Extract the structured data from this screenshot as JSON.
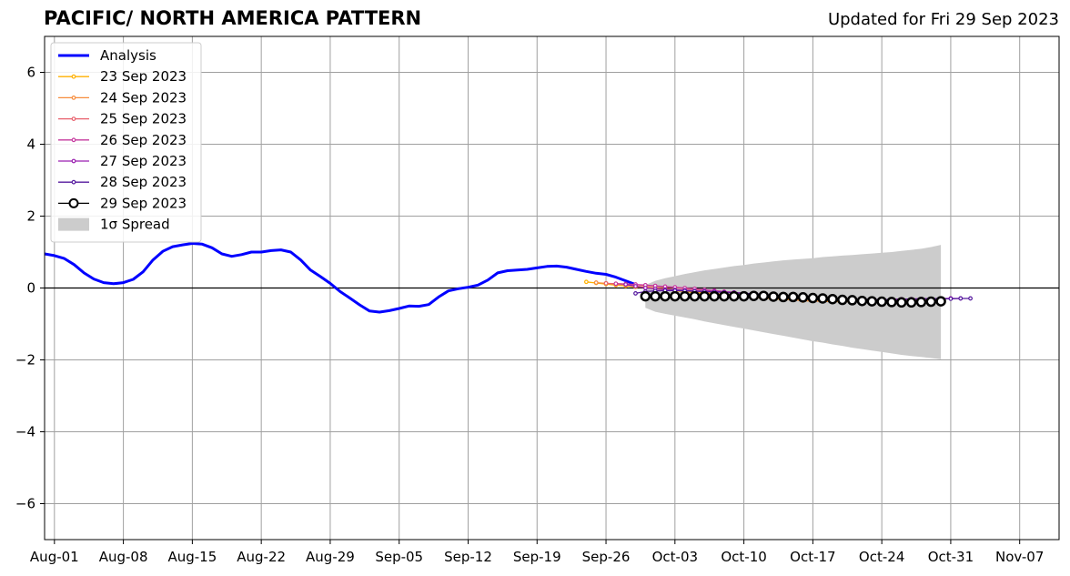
{
  "header": {
    "title": "PACIFIC/ NORTH AMERICA PATTERN",
    "updated": "Updated for Fri 29 Sep 2023"
  },
  "chart_data": {
    "type": "line",
    "title": "PACIFIC/ NORTH AMERICA PATTERN",
    "subtitle": "Updated for Fri 29 Sep 2023",
    "xlabel": "",
    "ylabel": "",
    "x_axis": {
      "unit": "date",
      "range": [
        "2023-07-31",
        "2023-11-11"
      ],
      "ticks": [
        "2023-08-01",
        "2023-08-08",
        "2023-08-15",
        "2023-08-22",
        "2023-08-29",
        "2023-09-05",
        "2023-09-12",
        "2023-09-19",
        "2023-09-26",
        "2023-10-03",
        "2023-10-10",
        "2023-10-17",
        "2023-10-24",
        "2023-10-31",
        "2023-11-07"
      ],
      "tick_labels": [
        "Aug-01",
        "Aug-08",
        "Aug-15",
        "Aug-22",
        "Aug-29",
        "Sep-05",
        "Sep-12",
        "Sep-19",
        "Sep-26",
        "Oct-03",
        "Oct-10",
        "Oct-17",
        "Oct-24",
        "Oct-31",
        "Nov-07"
      ]
    },
    "y_axis": {
      "range": [
        -7,
        7
      ],
      "ticks": [
        -6,
        -4,
        -2,
        0,
        2,
        4,
        6
      ],
      "tick_labels": [
        "−6",
        "−4",
        "−2",
        "0",
        "2",
        "4",
        "6"
      ]
    },
    "grid": true,
    "legend_position": "upper-left",
    "zero_line": true,
    "analysis": {
      "name": "Analysis",
      "color": "#0000ff",
      "start": "2023-07-31",
      "values": [
        0.95,
        0.9,
        0.82,
        0.65,
        0.42,
        0.25,
        0.15,
        0.12,
        0.15,
        0.24,
        0.45,
        0.78,
        1.02,
        1.15,
        1.2,
        1.24,
        1.22,
        1.12,
        0.95,
        0.88,
        0.93,
        1.0,
        1.0,
        1.04,
        1.06,
        1.0,
        0.78,
        0.5,
        0.32,
        0.13,
        -0.1,
        -0.28,
        -0.47,
        -0.64,
        -0.67,
        -0.63,
        -0.57,
        -0.5,
        -0.51,
        -0.46,
        -0.25,
        -0.08,
        -0.02,
        0.02,
        0.08,
        0.22,
        0.42,
        0.48,
        0.5,
        0.52,
        0.56,
        0.6,
        0.61,
        0.58,
        0.52,
        0.46,
        0.41,
        0.38,
        0.3,
        0.2,
        0.1
      ]
    },
    "forecasts": [
      {
        "name": "23 Sep 2023",
        "color": "#ffb000",
        "start": "2023-09-24",
        "values": [
          0.17,
          0.14,
          0.11,
          0.08,
          0.06,
          0.03,
          0.01,
          -0.02,
          -0.05,
          -0.08,
          -0.1,
          -0.13,
          -0.15,
          -0.17,
          -0.19,
          -0.22,
          -0.24,
          -0.26,
          -0.28,
          -0.3,
          -0.32,
          -0.33,
          -0.35,
          -0.36,
          -0.37,
          -0.38,
          -0.38,
          -0.38,
          -0.37,
          -0.36,
          -0.35,
          -0.34,
          -0.33,
          -0.32,
          -0.31
        ]
      },
      {
        "name": "24 Sep 2023",
        "color": "#f78c3c",
        "start": "2023-09-25",
        "values": [
          0.15,
          0.13,
          0.1,
          0.08,
          0.05,
          0.03,
          0.0,
          -0.02,
          -0.05,
          -0.07,
          -0.1,
          -0.12,
          -0.15,
          -0.17,
          -0.19,
          -0.22,
          -0.24,
          -0.27,
          -0.29,
          -0.31,
          -0.33,
          -0.35,
          -0.36,
          -0.37,
          -0.37,
          -0.37,
          -0.36,
          -0.36,
          -0.35,
          -0.34,
          -0.34,
          -0.33,
          -0.33,
          -0.32,
          -0.32
        ]
      },
      {
        "name": "25 Sep 2023",
        "color": "#e8606c",
        "start": "2023-09-26",
        "values": [
          0.13,
          0.12,
          0.11,
          0.09,
          0.07,
          0.05,
          0.03,
          0.01,
          -0.02,
          -0.04,
          -0.06,
          -0.08,
          -0.11,
          -0.13,
          -0.15,
          -0.18,
          -0.2,
          -0.22,
          -0.24,
          -0.27,
          -0.28,
          -0.3,
          -0.31,
          -0.32,
          -0.33,
          -0.33,
          -0.33,
          -0.33,
          -0.32,
          -0.32,
          -0.32,
          -0.31,
          -0.31,
          -0.3,
          -0.3
        ]
      },
      {
        "name": "26 Sep 2023",
        "color": "#c6399e",
        "start": "2023-09-27",
        "values": [
          0.12,
          0.11,
          0.1,
          0.08,
          0.06,
          0.04,
          0.02,
          0.0,
          -0.02,
          -0.05,
          -0.07,
          -0.1,
          -0.12,
          -0.15,
          -0.17,
          -0.19,
          -0.21,
          -0.23,
          -0.25,
          -0.27,
          -0.29,
          -0.3,
          -0.31,
          -0.32,
          -0.32,
          -0.33,
          -0.33,
          -0.33,
          -0.32,
          -0.31,
          -0.31,
          -0.3,
          -0.3,
          -0.29,
          -0.29
        ]
      },
      {
        "name": "27 Sep 2023",
        "color": "#9a1fb0",
        "start": "2023-09-28",
        "values": [
          0.1,
          0.05,
          0.0,
          -0.02,
          -0.04,
          -0.05,
          -0.06,
          -0.08,
          -0.09,
          -0.1,
          -0.12,
          -0.13,
          -0.15,
          -0.17,
          -0.19,
          -0.2,
          -0.22,
          -0.24,
          -0.26,
          -0.27,
          -0.29,
          -0.3,
          -0.31,
          -0.31,
          -0.32,
          -0.32,
          -0.32,
          -0.32,
          -0.31,
          -0.31,
          -0.3,
          -0.3,
          -0.3,
          -0.29,
          -0.29
        ]
      },
      {
        "name": "28 Sep 2023",
        "color": "#55199e",
        "start": "2023-09-29",
        "values": [
          -0.15,
          -0.1,
          -0.08,
          -0.07,
          -0.07,
          -0.08,
          -0.09,
          -0.1,
          -0.11,
          -0.12,
          -0.13,
          -0.15,
          -0.16,
          -0.18,
          -0.2,
          -0.21,
          -0.23,
          -0.25,
          -0.26,
          -0.28,
          -0.29,
          -0.3,
          -0.31,
          -0.31,
          -0.32,
          -0.32,
          -0.32,
          -0.32,
          -0.31,
          -0.31,
          -0.3,
          -0.3,
          -0.3,
          -0.29,
          -0.29
        ]
      },
      {
        "name": "29 Sep 2023",
        "color": "#000000",
        "start": "2023-09-30",
        "values": [
          -0.23,
          -0.23,
          -0.23,
          -0.23,
          -0.23,
          -0.23,
          -0.23,
          -0.23,
          -0.23,
          -0.23,
          -0.23,
          -0.22,
          -0.22,
          -0.24,
          -0.25,
          -0.25,
          -0.26,
          -0.28,
          -0.29,
          -0.31,
          -0.33,
          -0.34,
          -0.36,
          -0.37,
          -0.38,
          -0.39,
          -0.4,
          -0.4,
          -0.39,
          -0.38,
          -0.37
        ]
      }
    ],
    "spread": {
      "name": "1σ Spread",
      "color": "#cccccc",
      "start": "2023-09-30",
      "upper": [
        0.08,
        0.2,
        0.27,
        0.33,
        0.39,
        0.44,
        0.49,
        0.53,
        0.57,
        0.61,
        0.64,
        0.68,
        0.71,
        0.74,
        0.77,
        0.79,
        0.81,
        0.83,
        0.86,
        0.88,
        0.9,
        0.92,
        0.94,
        0.96,
        0.98,
        1.0,
        1.03,
        1.06,
        1.09,
        1.14,
        1.2
      ],
      "lower": [
        -0.55,
        -0.66,
        -0.72,
        -0.77,
        -0.82,
        -0.87,
        -0.93,
        -0.98,
        -1.03,
        -1.08,
        -1.13,
        -1.18,
        -1.23,
        -1.28,
        -1.33,
        -1.38,
        -1.43,
        -1.48,
        -1.52,
        -1.57,
        -1.61,
        -1.66,
        -1.7,
        -1.74,
        -1.78,
        -1.82,
        -1.86,
        -1.89,
        -1.92,
        -1.95,
        -1.98
      ]
    }
  }
}
